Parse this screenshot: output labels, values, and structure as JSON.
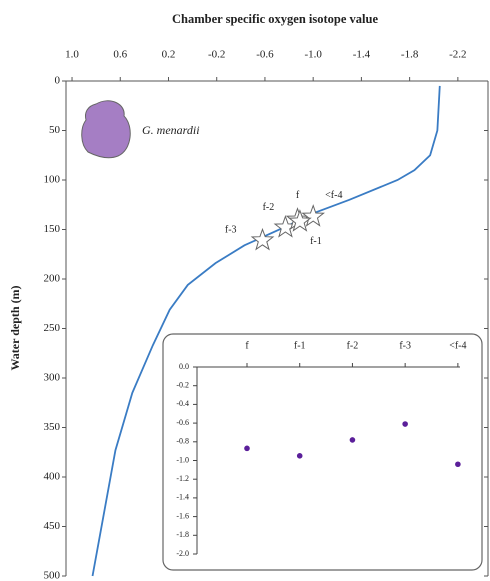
{
  "chart_data": [
    {
      "type": "line",
      "title": "Chamber specific oxygen isotope value",
      "y_label": "Water depth (m)",
      "annotation": "G. menardii",
      "x": [
        -2.05,
        -2.03,
        -1.97,
        -1.84,
        -1.7,
        -1.3,
        -0.97,
        -0.81,
        -0.43,
        -0.19,
        0.04,
        0.19,
        0.33,
        0.5,
        0.64,
        0.83
      ],
      "values": [
        5,
        50,
        75,
        90,
        100,
        120,
        135,
        145,
        166,
        184,
        206,
        231,
        267,
        315,
        373,
        500
      ],
      "color": "#3a7cc4",
      "points": {
        "labels": [
          "f-3",
          "f-2",
          "f",
          "<f-4",
          "f-1"
        ],
        "x": [
          -0.58,
          -0.77,
          -0.87,
          -1.0,
          -0.89
        ],
        "values": [
          161,
          148,
          140,
          137,
          142
        ]
      },
      "xlim": [
        1.05,
        -2.45
      ],
      "xticks": [
        {
          "value": 1.0,
          "label": "1.0"
        },
        0.6,
        0.2,
        -0.2,
        -0.6,
        {
          "value": -1.0,
          "label": "-1.0"
        },
        -1.4,
        -1.8,
        -2.2
      ],
      "ylim": [
        0,
        500
      ],
      "yticks": [
        0,
        50,
        100,
        150,
        200,
        250,
        300,
        350,
        400,
        450,
        500
      ]
    },
    {
      "type": "scatter",
      "categories": [
        "f",
        "f-1",
        "f-2",
        "f-3",
        "<f-4"
      ],
      "values": [
        -0.87,
        -0.95,
        -0.78,
        -0.61,
        -1.04
      ],
      "color": "#5b1f9a",
      "ylim": [
        0,
        -2.0
      ],
      "yticks": [
        {
          "value": 0,
          "label": "0.0"
        },
        -0.2,
        -0.4,
        -0.6,
        -0.8,
        {
          "value": -1.0,
          "label": "-1.0"
        },
        -1.2,
        -1.4,
        -1.6,
        -1.8,
        {
          "value": -2.0,
          "label": "-2.0"
        }
      ]
    }
  ]
}
